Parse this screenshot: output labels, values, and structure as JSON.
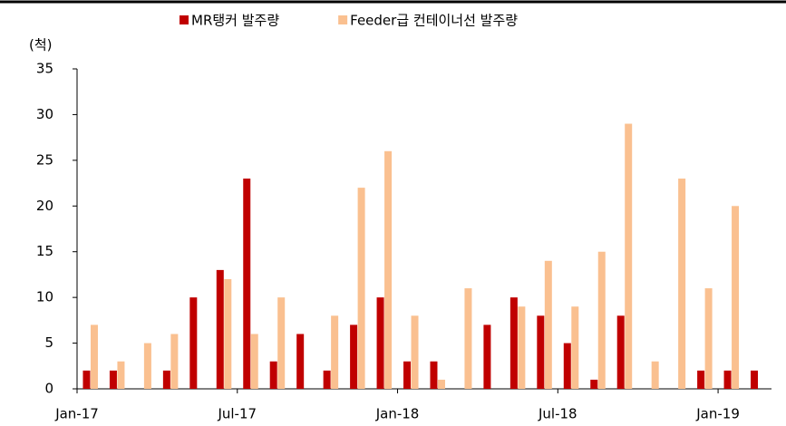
{
  "chart_data": {
    "type": "bar",
    "y_unit_label": "(척)",
    "categories": [
      "Jan-17",
      null,
      null,
      null,
      null,
      null,
      "Jul-17",
      null,
      null,
      null,
      null,
      null,
      "Jan-18",
      null,
      null,
      null,
      null,
      null,
      "Jul-18",
      null,
      null,
      null,
      null,
      null,
      "Jan-19",
      null
    ],
    "series": [
      {
        "name": "MR탱커 발주량",
        "color": "#c00000",
        "values": [
          2,
          2,
          0,
          2,
          10,
          13,
          23,
          3,
          6,
          2,
          7,
          10,
          3,
          3,
          0,
          7,
          10,
          8,
          5,
          1,
          8,
          0,
          0,
          2,
          2,
          2
        ]
      },
      {
        "name": "Feeder급 컨테이너선 발주량",
        "color": "#fac090",
        "values": [
          7,
          3,
          5,
          6,
          0,
          12,
          6,
          10,
          0,
          8,
          22,
          26,
          8,
          1,
          11,
          0,
          9,
          14,
          9,
          15,
          29,
          3,
          23,
          11,
          20,
          0
        ]
      }
    ],
    "ylim": [
      0,
      35
    ],
    "yticks": [
      0,
      5,
      10,
      15,
      20,
      25,
      30,
      35
    ],
    "legend": "top"
  }
}
